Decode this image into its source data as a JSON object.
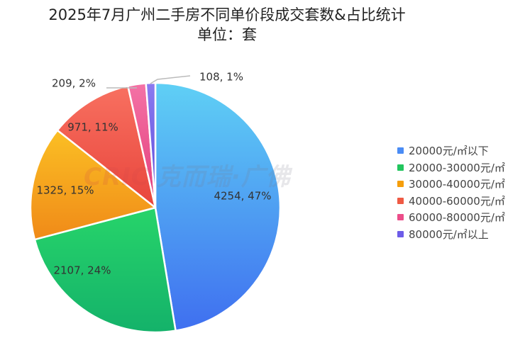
{
  "chart_data": {
    "type": "pie",
    "title": "2025年7月广州二手房不同单价段成交套数&占比统计",
    "subtitle": "单位：套",
    "legend_position": "right",
    "slices": [
      {
        "label": "20000元/㎡以下",
        "value": 4254,
        "percent": "47%",
        "data_label": "4254, 47%",
        "color": "#4a8cf5"
      },
      {
        "label": "20000-30000元/㎡",
        "value": 2107,
        "percent": "24%",
        "data_label": "2107, 24%",
        "color": "#22c55e"
      },
      {
        "label": "30000-40000元/㎡",
        "value": 1325,
        "percent": "15%",
        "data_label": "1325, 15%",
        "color": "#f59e0b"
      },
      {
        "label": "40000-60000元/㎡",
        "value": 971,
        "percent": "11%",
        "data_label": "971, 11%",
        "color": "#ef5a44"
      },
      {
        "label": "60000-80000元/㎡",
        "value": 209,
        "percent": "2%",
        "data_label": "209, 2%",
        "color": "#ec4d8a"
      },
      {
        "label": "80000元/㎡以上",
        "value": 108,
        "percent": "1%",
        "data_label": "108, 1%",
        "color": "#6d5ce8"
      }
    ]
  },
  "watermark": {
    "brand": "CRIC",
    "text": "克而瑞·广佛"
  }
}
